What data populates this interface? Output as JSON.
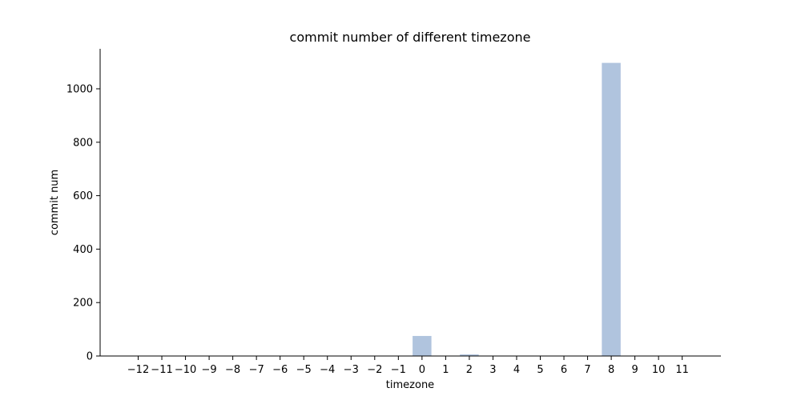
{
  "chart_data": {
    "type": "bar",
    "title": "commit number of different timezone",
    "xlabel": "timezone",
    "ylabel": "commit num",
    "categories": [
      -12,
      -11,
      -10,
      -9,
      -8,
      -7,
      -6,
      -5,
      -4,
      -3,
      -2,
      -1,
      0,
      1,
      2,
      3,
      4,
      5,
      6,
      7,
      8,
      9,
      10,
      11
    ],
    "tick_labels": [
      "−12",
      "−11",
      "−10",
      "−9",
      "−8",
      "−7",
      "−6",
      "−5",
      "−4",
      "−3",
      "−2",
      "−1",
      "0",
      "1",
      "2",
      "3",
      "4",
      "5",
      "6",
      "7",
      "8",
      "9",
      "10",
      "11"
    ],
    "values": [
      0,
      0,
      0,
      0,
      0,
      0,
      0,
      0,
      0,
      0,
      0,
      0,
      75,
      0,
      6,
      0,
      0,
      0,
      0,
      0,
      1097,
      0,
      0,
      0
    ],
    "yticks": [
      "0",
      "200",
      "400",
      "600",
      "800",
      "1000"
    ],
    "ylim": [
      0,
      1150
    ],
    "bar_color": "#b0c4de",
    "grid": false,
    "legend": "none"
  }
}
